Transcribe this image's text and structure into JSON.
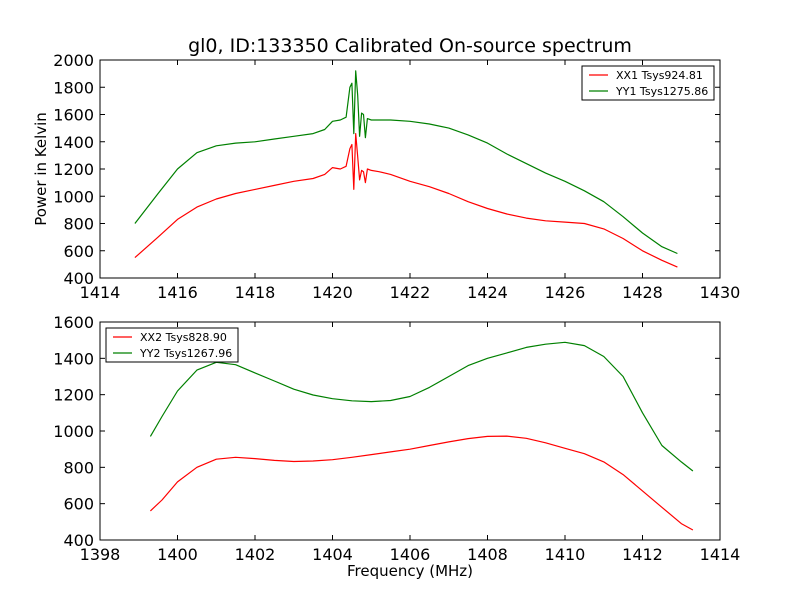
{
  "chart_data": [
    {
      "type": "line",
      "title": "gl0, ID:133350 Calibrated On-source spectrum",
      "xlabel": "",
      "ylabel": "Power in Kelvin",
      "xlim": [
        1414,
        1430
      ],
      "ylim": [
        400,
        2000
      ],
      "xticks": [
        "1414",
        "1416",
        "1418",
        "1420",
        "1422",
        "1424",
        "1426",
        "1428",
        "1430"
      ],
      "yticks": [
        "400",
        "600",
        "800",
        "1000",
        "1200",
        "1400",
        "1600",
        "1800",
        "2000"
      ],
      "legend_position": "top-right",
      "series": [
        {
          "name": "XX1 Tsys924.81",
          "color": "#ff0000",
          "x": [
            1414.9,
            1415.5,
            1416.0,
            1416.5,
            1417.0,
            1417.5,
            1418.0,
            1418.5,
            1419.0,
            1419.5,
            1419.8,
            1420.0,
            1420.2,
            1420.35,
            1420.45,
            1420.5,
            1420.55,
            1420.6,
            1420.65,
            1420.7,
            1420.75,
            1420.8,
            1420.85,
            1420.9,
            1421.0,
            1421.2,
            1421.5,
            1422.0,
            1422.5,
            1423.0,
            1423.5,
            1424.0,
            1424.5,
            1425.0,
            1425.5,
            1426.0,
            1426.5,
            1427.0,
            1427.5,
            1428.0,
            1428.5,
            1428.9
          ],
          "y": [
            550,
            700,
            830,
            920,
            980,
            1020,
            1050,
            1080,
            1110,
            1130,
            1160,
            1210,
            1200,
            1220,
            1350,
            1380,
            1050,
            1460,
            1290,
            1120,
            1190,
            1180,
            1100,
            1200,
            1190,
            1180,
            1160,
            1110,
            1070,
            1020,
            960,
            910,
            870,
            840,
            820,
            810,
            800,
            760,
            690,
            600,
            530,
            480
          ]
        },
        {
          "name": "YY1 Tsys1275.86",
          "color": "#008000",
          "x": [
            1414.9,
            1415.5,
            1416.0,
            1416.5,
            1417.0,
            1417.5,
            1418.0,
            1418.5,
            1419.0,
            1419.5,
            1419.8,
            1420.0,
            1420.2,
            1420.35,
            1420.45,
            1420.5,
            1420.55,
            1420.6,
            1420.65,
            1420.7,
            1420.75,
            1420.8,
            1420.85,
            1420.9,
            1421.0,
            1421.5,
            1422.0,
            1422.5,
            1423.0,
            1423.5,
            1424.0,
            1424.5,
            1425.0,
            1425.5,
            1426.0,
            1426.5,
            1427.0,
            1427.5,
            1428.0,
            1428.5,
            1428.9
          ],
          "y": [
            800,
            1020,
            1200,
            1320,
            1370,
            1390,
            1400,
            1420,
            1440,
            1460,
            1490,
            1550,
            1560,
            1580,
            1800,
            1830,
            1460,
            1920,
            1740,
            1440,
            1610,
            1600,
            1430,
            1570,
            1560,
            1560,
            1550,
            1530,
            1500,
            1450,
            1390,
            1310,
            1240,
            1170,
            1110,
            1040,
            960,
            850,
            730,
            630,
            580
          ]
        }
      ]
    },
    {
      "type": "line",
      "title": "",
      "xlabel": "Frequency (MHz)",
      "ylabel": "",
      "xlim": [
        1398,
        1414
      ],
      "ylim": [
        400,
        1600
      ],
      "xticks": [
        "1398",
        "1400",
        "1402",
        "1404",
        "1406",
        "1408",
        "1410",
        "1412",
        "1414"
      ],
      "yticks": [
        "400",
        "600",
        "800",
        "1000",
        "1200",
        "1400",
        "1600"
      ],
      "legend_position": "top-left",
      "series": [
        {
          "name": "XX2 Tsys828.90",
          "color": "#ff0000",
          "x": [
            1399.3,
            1399.6,
            1400.0,
            1400.5,
            1401.0,
            1401.5,
            1402.0,
            1402.5,
            1403.0,
            1403.5,
            1404.0,
            1404.5,
            1405.0,
            1405.5,
            1406.0,
            1406.5,
            1407.0,
            1407.5,
            1408.0,
            1408.5,
            1409.0,
            1409.5,
            1410.0,
            1410.5,
            1411.0,
            1411.5,
            1412.0,
            1412.5,
            1413.0,
            1413.3
          ],
          "y": [
            560,
            620,
            720,
            800,
            845,
            855,
            848,
            838,
            832,
            835,
            842,
            855,
            870,
            885,
            900,
            920,
            940,
            958,
            970,
            972,
            960,
            935,
            905,
            875,
            830,
            760,
            670,
            580,
            490,
            455
          ]
        },
        {
          "name": "YY2 Tsys1267.96",
          "color": "#008000",
          "x": [
            1399.3,
            1399.6,
            1400.0,
            1400.5,
            1401.0,
            1401.5,
            1402.0,
            1402.5,
            1403.0,
            1403.5,
            1404.0,
            1404.5,
            1405.0,
            1405.5,
            1406.0,
            1406.5,
            1407.0,
            1407.5,
            1408.0,
            1408.5,
            1409.0,
            1409.5,
            1410.0,
            1410.5,
            1411.0,
            1411.5,
            1412.0,
            1412.5,
            1413.0,
            1413.3
          ],
          "y": [
            970,
            1080,
            1220,
            1335,
            1378,
            1365,
            1320,
            1275,
            1230,
            1198,
            1178,
            1166,
            1162,
            1168,
            1190,
            1240,
            1300,
            1360,
            1400,
            1430,
            1460,
            1478,
            1488,
            1470,
            1410,
            1300,
            1100,
            920,
            830,
            780
          ]
        }
      ]
    }
  ]
}
